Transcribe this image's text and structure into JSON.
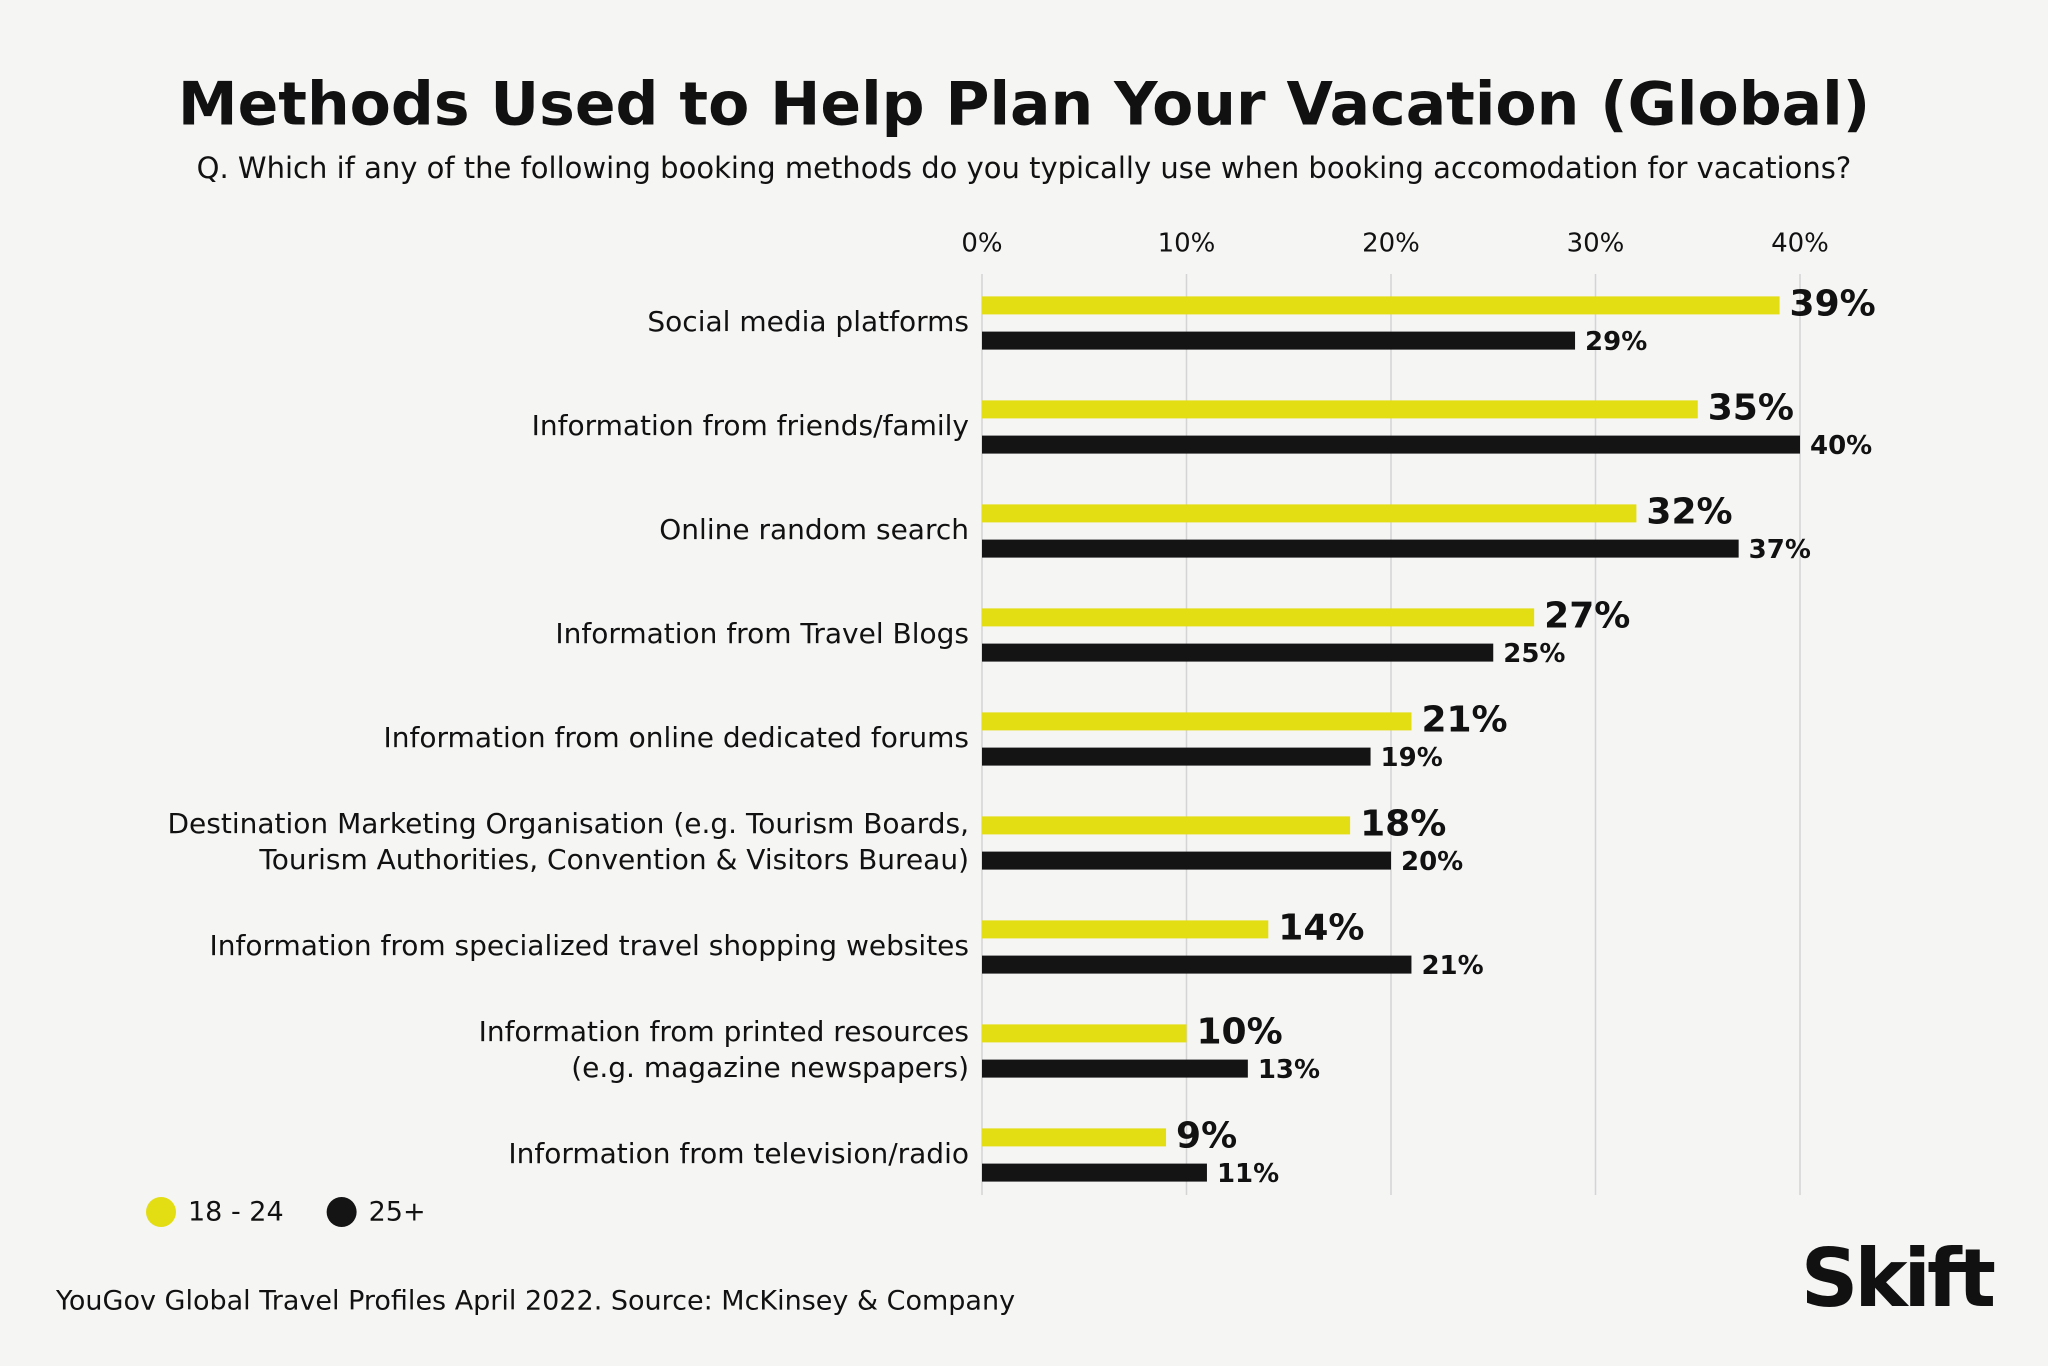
{
  "chart_data": {
    "type": "bar",
    "orientation": "horizontal",
    "title": "Methods Used to Help Plan Your Vacation (Global)",
    "subtitle": "Q. Which if any of the following booking methods do you typically use when booking accomodation for vacations?",
    "categories": [
      "Social media platforms",
      "Information from friends/family",
      "Online random search",
      "Information from Travel Blogs",
      "Information from online dedicated forums",
      "Destination Marketing Organisation (e.g. Tourism Boards,\nTourism Authorities, Convention & Visitors Bureau)",
      "Information from specialized travel shopping websites",
      "Information from printed resources\n(e.g. magazine newspapers)",
      "Information from television/radio"
    ],
    "series": [
      {
        "name": "18 - 24",
        "color": "#e3dd13",
        "values": [
          39,
          35,
          32,
          27,
          21,
          18,
          14,
          10,
          9
        ],
        "value_labels": [
          "39%",
          "35%",
          "32%",
          "27%",
          "21%",
          "18%",
          "14%",
          "10%",
          "9%"
        ]
      },
      {
        "name": "25+",
        "color": "#141414",
        "values": [
          29,
          40,
          37,
          25,
          19,
          20,
          21,
          13,
          11
        ],
        "value_labels": [
          "29%",
          "40%",
          "37%",
          "25%",
          "19%",
          "20%",
          "21%",
          "13%",
          "11%"
        ]
      }
    ],
    "xlim": [
      0,
      40
    ],
    "xticks": [
      {
        "value": 0,
        "label": "0%"
      },
      {
        "value": 10,
        "label": "10%"
      },
      {
        "value": 20,
        "label": "20%"
      },
      {
        "value": 30,
        "label": "30%"
      },
      {
        "value": 40,
        "label": "40%"
      }
    ],
    "grid": true,
    "legend": "bottom-left",
    "source": "YouGov Global Travel Profiles April 2022. Source: McKinsey & Company",
    "logo": "Skift"
  }
}
